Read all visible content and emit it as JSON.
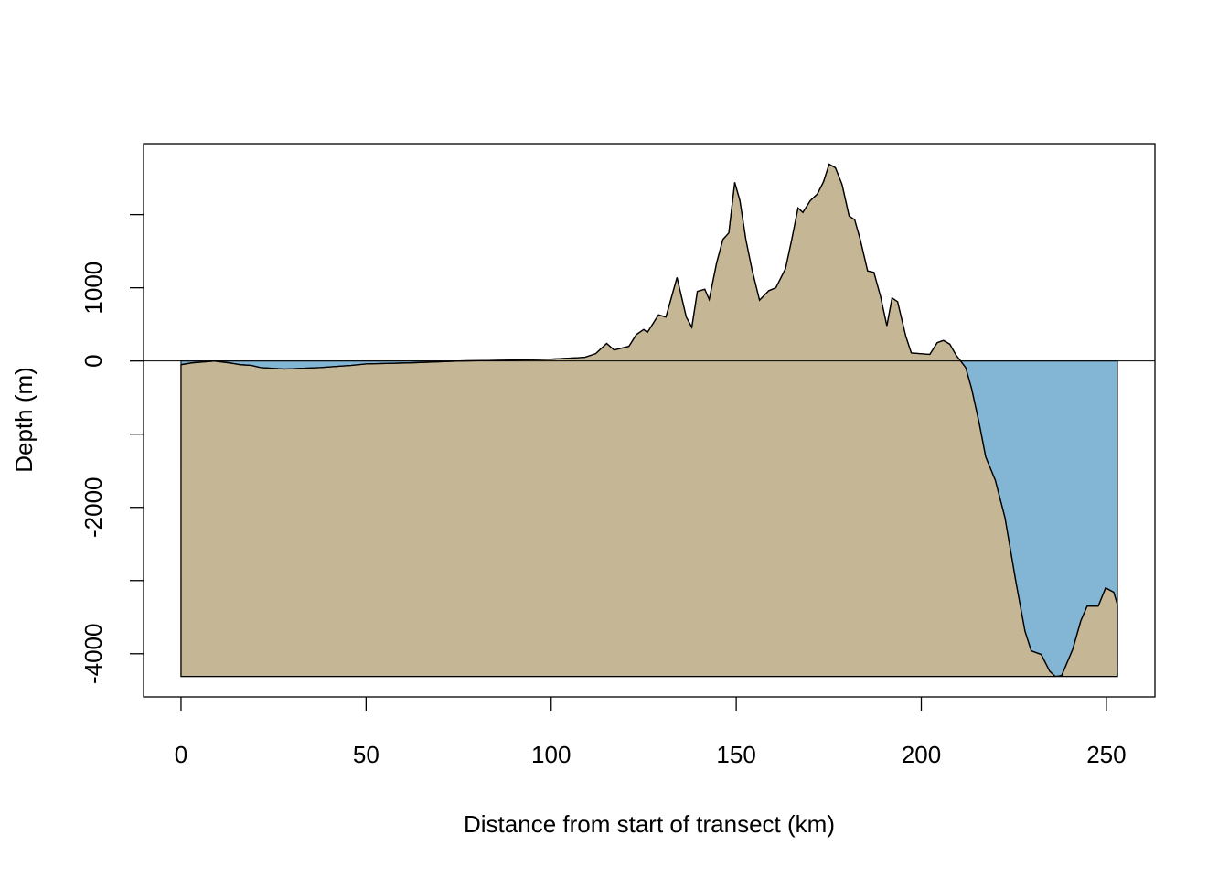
{
  "chart_data": {
    "type": "area",
    "x_label": "Distance from start of transect (km)",
    "y_label": "Depth (m)",
    "x": [
      0,
      3,
      9,
      13,
      16,
      19,
      21.5,
      28,
      37.6,
      46,
      50,
      62,
      75,
      87,
      100,
      109,
      112,
      115,
      117,
      121,
      123,
      125,
      126,
      129,
      131,
      134,
      136.5,
      138,
      139.5,
      141.5,
      142.7,
      144.7,
      146.4,
      148,
      149.6,
      151,
      152.6,
      154.3,
      156.3,
      158.8,
      160.7,
      163.3,
      165,
      166.7,
      168,
      170,
      171.9,
      173.6,
      175.1,
      176.8,
      178.6,
      180.5,
      182,
      183.5,
      185.5,
      187.2,
      189,
      190.7,
      192.1,
      193.6,
      195.8,
      197.3,
      202.3,
      204.3,
      206,
      207.7,
      209.4,
      212,
      213.6,
      215.6,
      217.4,
      220,
      222.6,
      225.5,
      228,
      229.7,
      232.4,
      234.7,
      236.2,
      237.9,
      240.9,
      243.1,
      244.8,
      247.8,
      249.8,
      252,
      253
    ],
    "values": [
      -50,
      -25,
      0,
      -25,
      -50,
      -60,
      -90,
      -110,
      -90,
      -60,
      -40,
      -25,
      0,
      10,
      25,
      50,
      100,
      240,
      150,
      200,
      360,
      430,
      390,
      630,
      600,
      1140,
      600,
      460,
      950,
      980,
      840,
      1340,
      1660,
      1750,
      2440,
      2190,
      1660,
      1240,
      830,
      960,
      1000,
      1260,
      1660,
      2090,
      2030,
      2190,
      2280,
      2450,
      2690,
      2640,
      2410,
      1980,
      1930,
      1660,
      1230,
      1210,
      880,
      480,
      860,
      810,
      340,
      110,
      90,
      250,
      280,
      230,
      80,
      -90,
      -380,
      -840,
      -1310,
      -1630,
      -2140,
      -3000,
      -3690,
      -3960,
      -4010,
      -4240,
      -4310,
      -4300,
      -3940,
      -3550,
      -3350,
      -3350,
      -3100,
      -3160,
      -3330
    ],
    "land_color": "#c5b696",
    "water_color": "#83b5d5",
    "xlim": [
      -10.12,
      263.12
    ],
    "ylim": [
      -4590,
      2970
    ],
    "xticks": [
      0,
      50,
      100,
      150,
      200,
      250
    ],
    "yticks": [
      -4000,
      {
        "value": -3000,
        "label": null
      },
      -2000,
      {
        "value": -1000,
        "label": null
      },
      0,
      1000,
      {
        "value": 2000,
        "label": null
      }
    ],
    "zero_line": true
  }
}
